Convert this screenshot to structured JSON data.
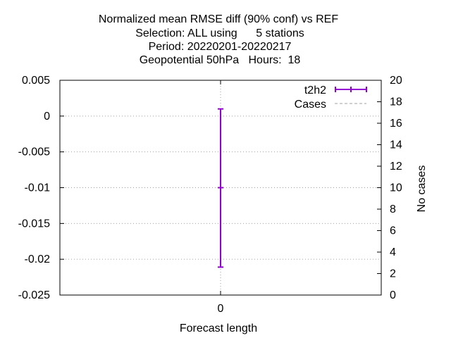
{
  "chart_data": {
    "type": "errorbar",
    "title_lines": [
      "Normalized mean RMSE diff (90% conf) vs REF",
      "Selection: ALL using      5 stations",
      "Period: 20220201-20220217",
      "Geopotential 50hPa   Hours:  18"
    ],
    "xlabel": "Forecast length",
    "ylabel": "",
    "y2label": "No cases",
    "x_categories": [
      "0"
    ],
    "ylim": [
      -0.025,
      0.005
    ],
    "yticks": [
      0.005,
      0,
      -0.005,
      -0.01,
      -0.015,
      -0.02,
      -0.025
    ],
    "ytick_labels": [
      "0.005",
      "0",
      "-0.005",
      "-0.01",
      "-0.015",
      "-0.02",
      "-0.025"
    ],
    "y2lim": [
      0,
      20
    ],
    "y2ticks": [
      0,
      2,
      4,
      6,
      8,
      10,
      12,
      14,
      16,
      18,
      20
    ],
    "y2tick_labels": [
      "0",
      "2",
      "4",
      "6",
      "8",
      "10",
      "12",
      "14",
      "16",
      "18",
      "20"
    ],
    "grid": true,
    "legend_position": "top-right",
    "series": [
      {
        "name": "t2h2",
        "color": "#9400d3",
        "points": [
          {
            "x": "0",
            "y": -0.01,
            "low": -0.0211,
            "high": 0.001
          }
        ]
      },
      {
        "name": "Cases",
        "color": "#a0a0a0",
        "axis": "y2",
        "points": []
      }
    ]
  }
}
